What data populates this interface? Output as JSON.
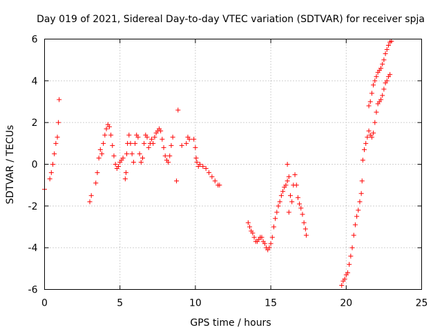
{
  "chart_data": {
    "type": "scatter",
    "title": "Day 019 of 2021, Sidereal Day-to-day VTEC variation (SDTVAR) for receiver spja",
    "xlabel": "GPS time / hours",
    "ylabel": "SDTVAR / TECUs",
    "xlim": [
      0,
      25
    ],
    "ylim": [
      -6,
      6
    ],
    "xticks": [
      0,
      5,
      10,
      15,
      20,
      25
    ],
    "xtick_labels": [
      "0",
      "5",
      "10",
      "15",
      "20",
      "25"
    ],
    "yticks": [
      -6,
      -4,
      -2,
      0,
      2,
      4,
      6
    ],
    "ytick_labels": [
      "-6",
      "-4",
      "-2",
      "0",
      "2",
      "4",
      "6"
    ],
    "grid": true,
    "marker": "+",
    "color": "#ff0000",
    "series": [
      {
        "name": "SDTVAR",
        "points": [
          [
            0.0,
            -1.2
          ],
          [
            0.35,
            -0.7
          ],
          [
            0.45,
            -0.4
          ],
          [
            0.55,
            0.0
          ],
          [
            0.65,
            0.5
          ],
          [
            0.75,
            1.0
          ],
          [
            0.85,
            1.3
          ],
          [
            0.92,
            2.0
          ],
          [
            0.97,
            3.1
          ],
          [
            3.0,
            -1.8
          ],
          [
            3.1,
            -1.5
          ],
          [
            3.4,
            -0.9
          ],
          [
            3.5,
            -0.4
          ],
          [
            3.6,
            0.3
          ],
          [
            3.7,
            0.7
          ],
          [
            3.8,
            0.5
          ],
          [
            3.9,
            1.0
          ],
          [
            4.0,
            1.4
          ],
          [
            4.1,
            1.7
          ],
          [
            4.2,
            1.9
          ],
          [
            4.3,
            1.8
          ],
          [
            4.4,
            1.4
          ],
          [
            4.5,
            0.9
          ],
          [
            4.6,
            0.4
          ],
          [
            4.7,
            0.0
          ],
          [
            4.8,
            -0.2
          ],
          [
            4.9,
            -0.1
          ],
          [
            5.0,
            0.1
          ],
          [
            5.1,
            0.2
          ],
          [
            5.2,
            0.3
          ],
          [
            5.35,
            -0.7
          ],
          [
            5.4,
            -0.4
          ],
          [
            5.45,
            0.5
          ],
          [
            5.5,
            1.0
          ],
          [
            5.6,
            1.4
          ],
          [
            5.7,
            1.0
          ],
          [
            5.8,
            0.5
          ],
          [
            5.9,
            0.1
          ],
          [
            6.0,
            1.0
          ],
          [
            6.1,
            1.4
          ],
          [
            6.2,
            1.3
          ],
          [
            6.3,
            0.5
          ],
          [
            6.4,
            0.1
          ],
          [
            6.5,
            0.3
          ],
          [
            6.6,
            1.0
          ],
          [
            6.7,
            1.4
          ],
          [
            6.8,
            1.3
          ],
          [
            6.9,
            0.8
          ],
          [
            7.0,
            1.0
          ],
          [
            7.1,
            1.2
          ],
          [
            7.2,
            1.0
          ],
          [
            7.3,
            1.3
          ],
          [
            7.4,
            1.5
          ],
          [
            7.5,
            1.6
          ],
          [
            7.6,
            1.7
          ],
          [
            7.7,
            1.6
          ],
          [
            7.8,
            1.2
          ],
          [
            7.9,
            0.8
          ],
          [
            8.0,
            0.4
          ],
          [
            8.1,
            0.2
          ],
          [
            8.2,
            0.1
          ],
          [
            8.3,
            0.4
          ],
          [
            8.4,
            0.9
          ],
          [
            8.5,
            1.3
          ],
          [
            8.75,
            -0.8
          ],
          [
            8.85,
            2.6
          ],
          [
            9.1,
            0.9
          ],
          [
            9.4,
            1.0
          ],
          [
            9.5,
            1.3
          ],
          [
            9.6,
            1.2
          ],
          [
            9.9,
            1.2
          ],
          [
            10.0,
            0.8
          ],
          [
            10.05,
            0.3
          ],
          [
            10.1,
            0.1
          ],
          [
            10.2,
            -0.1
          ],
          [
            10.3,
            0.0
          ],
          [
            10.5,
            -0.1
          ],
          [
            10.7,
            -0.2
          ],
          [
            10.9,
            -0.4
          ],
          [
            11.1,
            -0.6
          ],
          [
            11.3,
            -0.8
          ],
          [
            11.5,
            -1.0
          ],
          [
            11.6,
            -1.0
          ],
          [
            13.5,
            -2.8
          ],
          [
            13.6,
            -3.0
          ],
          [
            13.7,
            -3.2
          ],
          [
            13.8,
            -3.3
          ],
          [
            13.9,
            -3.5
          ],
          [
            14.0,
            -3.7
          ],
          [
            14.1,
            -3.7
          ],
          [
            14.2,
            -3.6
          ],
          [
            14.3,
            -3.5
          ],
          [
            14.4,
            -3.5
          ],
          [
            14.5,
            -3.7
          ],
          [
            14.6,
            -3.8
          ],
          [
            14.7,
            -4.0
          ],
          [
            14.8,
            -4.1
          ],
          [
            14.9,
            -4.0
          ],
          [
            15.0,
            -3.8
          ],
          [
            15.1,
            -3.5
          ],
          [
            15.2,
            -3.0
          ],
          [
            15.3,
            -2.6
          ],
          [
            15.4,
            -2.3
          ],
          [
            15.5,
            -2.0
          ],
          [
            15.6,
            -1.8
          ],
          [
            15.7,
            -1.5
          ],
          [
            15.8,
            -1.3
          ],
          [
            15.9,
            -1.1
          ],
          [
            16.0,
            -1.0
          ],
          [
            16.1,
            -0.8
          ],
          [
            16.1,
            0.0
          ],
          [
            16.2,
            -0.6
          ],
          [
            16.2,
            -2.3
          ],
          [
            16.3,
            -1.5
          ],
          [
            16.4,
            -1.8
          ],
          [
            16.5,
            -1.0
          ],
          [
            16.6,
            -0.5
          ],
          [
            16.7,
            -1.0
          ],
          [
            16.8,
            -1.6
          ],
          [
            16.9,
            -1.9
          ],
          [
            17.0,
            -2.1
          ],
          [
            17.1,
            -2.4
          ],
          [
            17.2,
            -2.8
          ],
          [
            17.3,
            -3.1
          ],
          [
            17.35,
            -3.4
          ],
          [
            19.7,
            -5.8
          ],
          [
            19.8,
            -5.6
          ],
          [
            19.9,
            -5.5
          ],
          [
            20.0,
            -5.3
          ],
          [
            20.1,
            -5.2
          ],
          [
            20.2,
            -4.8
          ],
          [
            20.3,
            -4.4
          ],
          [
            20.4,
            -4.0
          ],
          [
            20.5,
            -3.4
          ],
          [
            20.6,
            -2.9
          ],
          [
            20.7,
            -2.5
          ],
          [
            20.8,
            -2.2
          ],
          [
            20.9,
            -1.8
          ],
          [
            21.0,
            -1.4
          ],
          [
            21.05,
            -0.8
          ],
          [
            21.1,
            0.2
          ],
          [
            21.2,
            0.7
          ],
          [
            21.3,
            1.0
          ],
          [
            21.4,
            1.3
          ],
          [
            21.5,
            1.6
          ],
          [
            21.6,
            1.4
          ],
          [
            21.7,
            1.3
          ],
          [
            21.8,
            1.5
          ],
          [
            21.9,
            2.0
          ],
          [
            22.0,
            2.5
          ],
          [
            22.1,
            2.9
          ],
          [
            22.2,
            3.0
          ],
          [
            22.3,
            3.1
          ],
          [
            22.4,
            3.3
          ],
          [
            22.5,
            3.6
          ],
          [
            22.6,
            3.9
          ],
          [
            22.7,
            4.0
          ],
          [
            22.8,
            4.2
          ],
          [
            22.9,
            4.3
          ],
          [
            21.5,
            2.8
          ],
          [
            21.6,
            3.0
          ],
          [
            21.7,
            3.4
          ],
          [
            21.8,
            3.8
          ],
          [
            21.9,
            4.0
          ],
          [
            22.0,
            4.2
          ],
          [
            22.1,
            4.4
          ],
          [
            22.2,
            4.5
          ],
          [
            22.3,
            4.6
          ],
          [
            22.4,
            4.8
          ],
          [
            22.5,
            5.0
          ],
          [
            22.6,
            5.3
          ],
          [
            22.7,
            5.5
          ],
          [
            22.8,
            5.7
          ],
          [
            22.9,
            5.85
          ],
          [
            23.0,
            5.9
          ]
        ]
      }
    ]
  }
}
